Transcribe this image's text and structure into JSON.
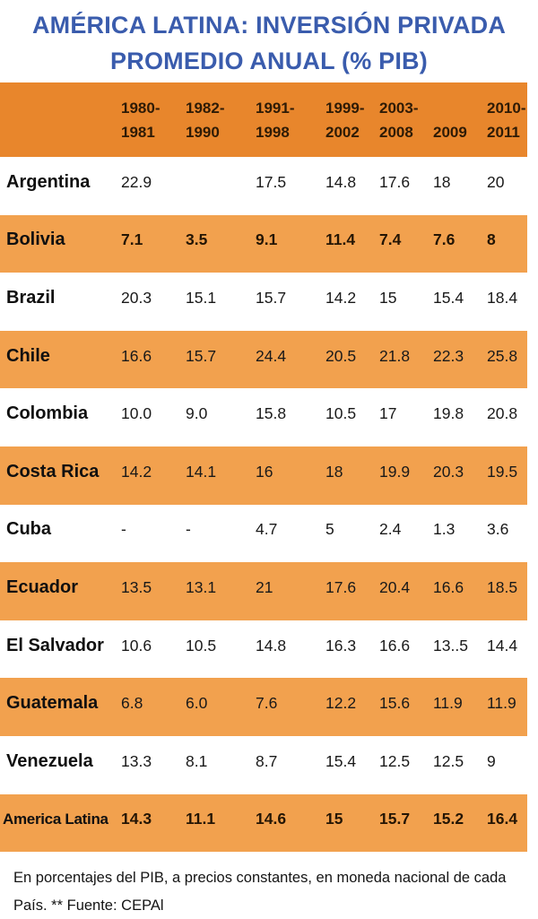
{
  "page_title": {
    "line1": "AMÉRICA LATINA: INVERSIÓN PRIVADA",
    "line2": "PROMEDIO ANUAL (% PIB)"
  },
  "chart_data": {
    "type": "table",
    "title": "AMÉRICA LATINA: INVERSIÓN PRIVADA PROMEDIO ANUAL (% PIB)",
    "columns": [
      "1980-1981",
      "1982-1990",
      "1991-1998",
      "1999-2002",
      "2003-2008",
      "2009",
      "2010-2011"
    ],
    "rows": [
      {
        "country": "Argentina",
        "values": [
          "22.9",
          "",
          "17.5",
          "14.8",
          "17.6",
          "18",
          "20"
        ],
        "bold": false
      },
      {
        "country": "Bolivia",
        "values": [
          "7.1",
          "3.5",
          "9.1",
          "11.4",
          "7.4",
          "7.6",
          "8"
        ],
        "bold": true
      },
      {
        "country": "Brazil",
        "values": [
          "20.3",
          "15.1",
          "15.7",
          "14.2",
          "15",
          "15.4",
          "18.4"
        ],
        "bold": false
      },
      {
        "country": "Chile",
        "values": [
          "16.6",
          "15.7",
          "24.4",
          "20.5",
          "21.8",
          "22.3",
          "25.8"
        ],
        "bold": false
      },
      {
        "country": "Colombia",
        "values": [
          "10.0",
          "9.0",
          "15.8",
          "10.5",
          "17",
          "19.8",
          "20.8"
        ],
        "bold": false
      },
      {
        "country": "Costa Rica",
        "values": [
          "14.2",
          "14.1",
          "16",
          "18",
          "19.9",
          "20.3",
          "19.5"
        ],
        "bold": false
      },
      {
        "country": "Cuba",
        "values": [
          "-",
          "-",
          "4.7",
          "5",
          "2.4",
          "1.3",
          "3.6"
        ],
        "bold": false
      },
      {
        "country": "Ecuador",
        "values": [
          "13.5",
          "13.1",
          "21",
          "17.6",
          "20.4",
          "16.6",
          "18.5"
        ],
        "bold": false
      },
      {
        "country": "El Salvador",
        "values": [
          "10.6",
          "10.5",
          "14.8",
          "16.3",
          "16.6",
          "13..5",
          "14.4"
        ],
        "bold": false
      },
      {
        "country": "Guatemala",
        "values": [
          "6.8",
          "6.0",
          "7.6",
          "12.2",
          "15.6",
          "11.9",
          "11.9"
        ],
        "bold": false
      },
      {
        "country": "Venezuela",
        "values": [
          "13.3",
          "8.1",
          "8.7",
          "15.4",
          "12.5",
          "12.5",
          "9"
        ],
        "bold": false
      },
      {
        "country": "America Latina",
        "values": [
          "14.3",
          "11.1",
          "14.6",
          "15",
          "15.7",
          "15.2",
          "16.4"
        ],
        "bold": true
      }
    ]
  },
  "footnote": "En porcentajes del PIB, a precios constantes, en moneda nacional de cada País. ** Fuente: CEPAl",
  "colors": {
    "title": "#3A5CAD",
    "header_bg": "#E8862C",
    "row_alt_bg": "#F2A14E",
    "text": "#1C1206"
  }
}
